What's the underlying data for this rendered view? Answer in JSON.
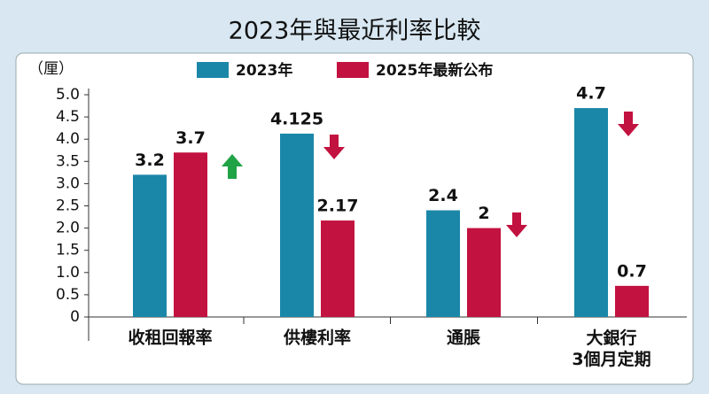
{
  "chart_data": {
    "type": "bar",
    "title": "2023年與最近利率比較",
    "y_label": "（厘）",
    "categories": [
      "收租回報率",
      "供樓利率",
      "通脹",
      "大銀行\n3個月定期"
    ],
    "series": [
      {
        "name": "2023年",
        "color": "#1b87a8",
        "values": [
          3.2,
          4.125,
          2.4,
          4.7
        ]
      },
      {
        "name": "2025年最新公布",
        "color": "#c2123f",
        "values": [
          3.7,
          2.17,
          2,
          0.7
        ]
      }
    ],
    "ylim": [
      0,
      5
    ],
    "yticks": [
      0,
      0.5,
      {
        "value": 1,
        "label": "1.0"
      },
      1.5,
      {
        "value": 2,
        "label": "2.0"
      },
      2.5,
      {
        "value": 3,
        "label": "3.0"
      },
      3.5,
      {
        "value": 4,
        "label": "4.0"
      },
      4.5,
      {
        "value": 5,
        "label": "5.0"
      }
    ]
  }
}
